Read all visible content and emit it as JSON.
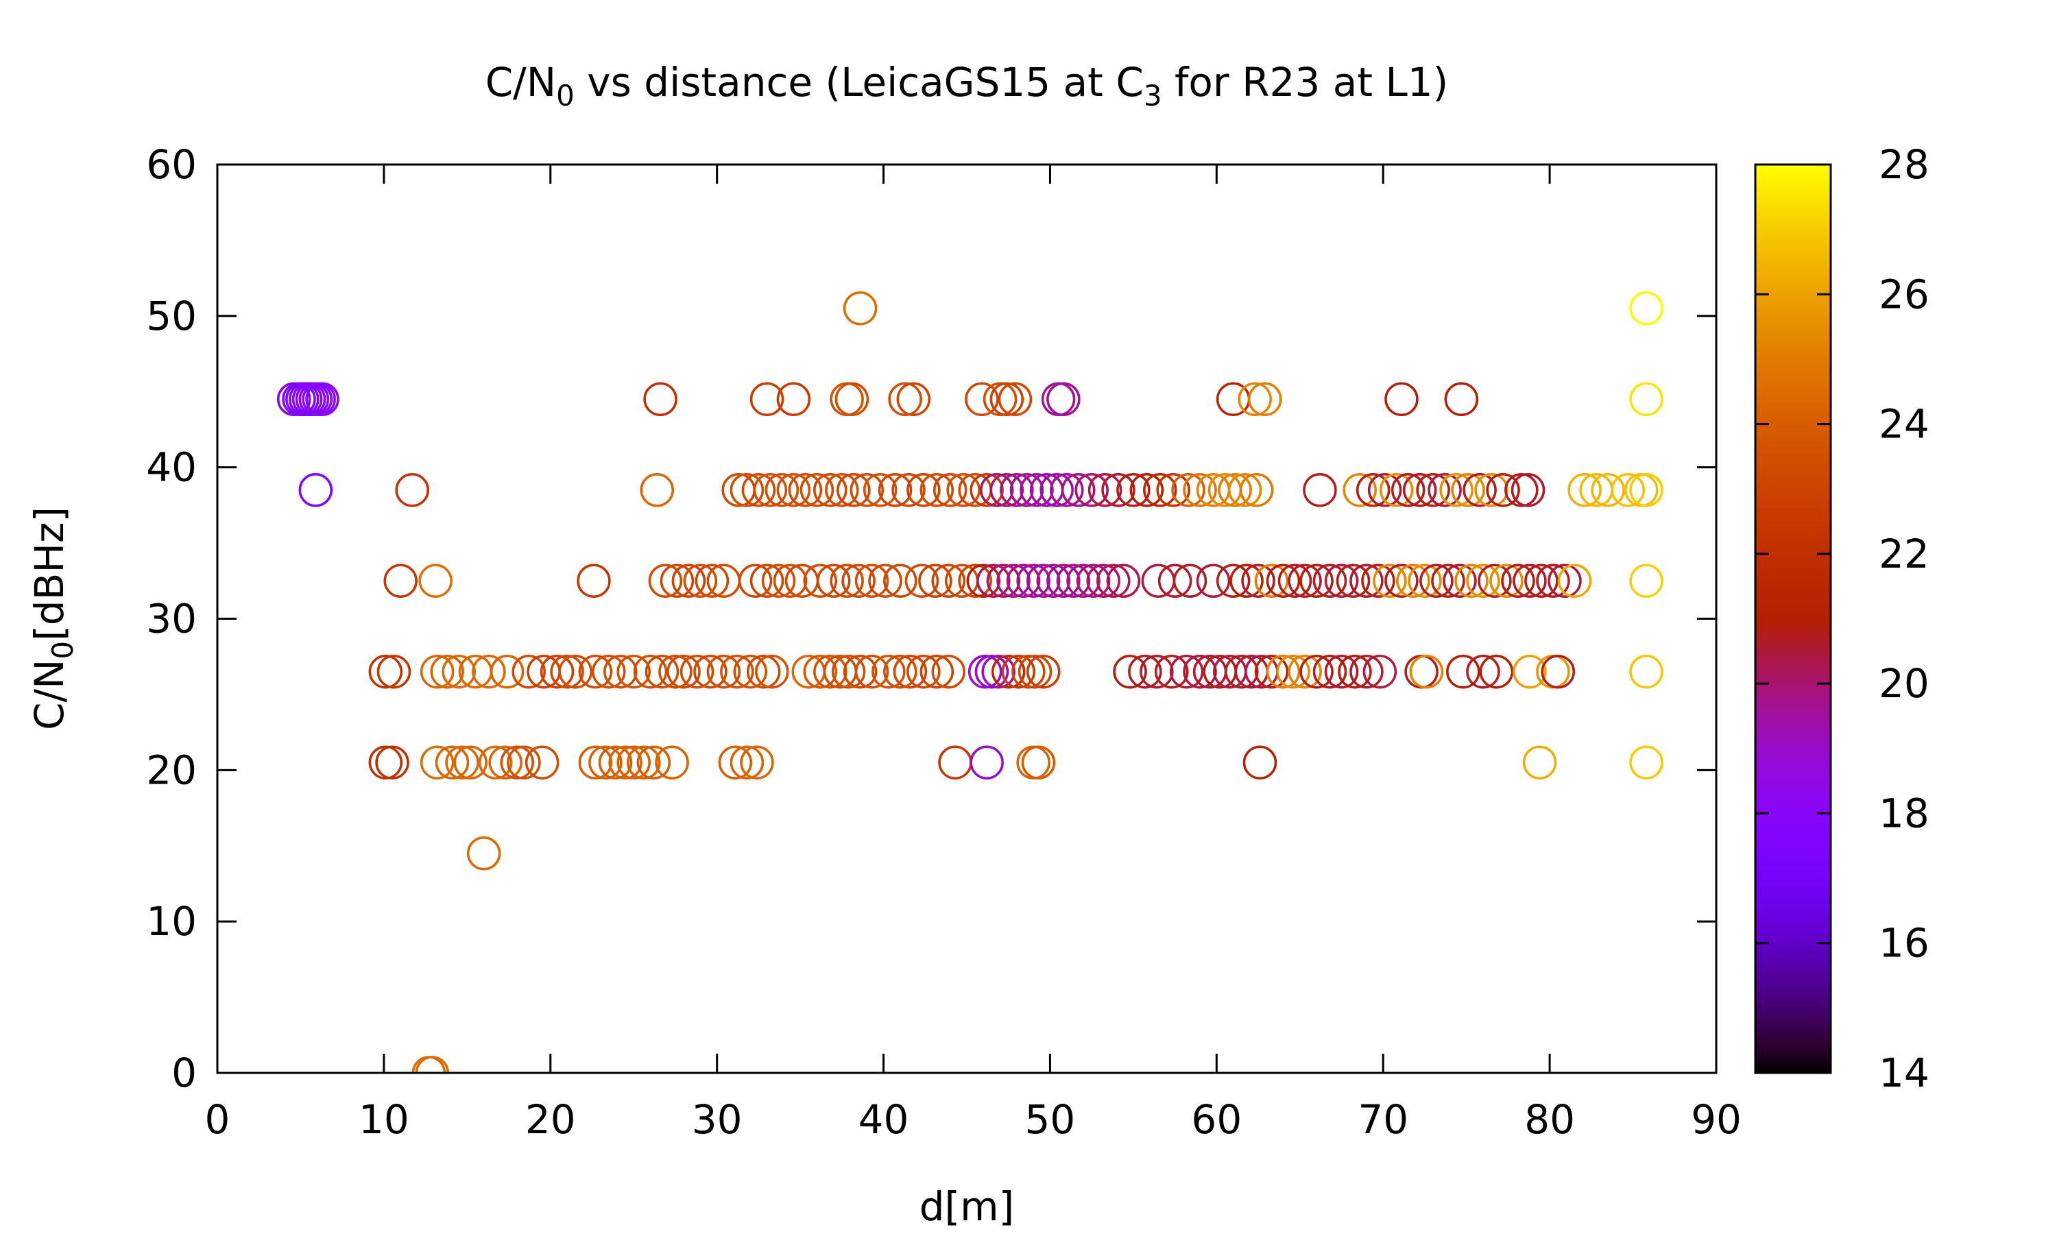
{
  "chart_data": {
    "type": "scatter",
    "title": {
      "base": "C/N",
      "sub": "0",
      "mid": " vs distance (LeicaGS15 at C",
      "sub2": "3",
      "tail": " for R23 at L1)"
    },
    "xlabel": "d[m]",
    "ylabel": {
      "base": "C/N",
      "sub": "0",
      "tail": "[dBHz]"
    },
    "xlim": [
      0,
      90
    ],
    "ylim": [
      0,
      60
    ],
    "xticks": [
      "0",
      "10",
      "20",
      "30",
      "40",
      "50",
      "60",
      "70",
      "80",
      "90"
    ],
    "yticks": [
      "0",
      "10",
      "20",
      "30",
      "40",
      "50",
      "60"
    ],
    "colorbar": {
      "range": [
        14,
        28
      ],
      "ticks": [
        "14",
        "16",
        "18",
        "20",
        "22",
        "24",
        "26",
        "28"
      ],
      "palette": "gnuplot-rgbformulae-7-5-15"
    },
    "grid": false,
    "marker": "open-circle",
    "points": [
      [
        4.6,
        44.5,
        17.5
      ],
      [
        4.9,
        44.5,
        17.5
      ],
      [
        5.1,
        44.5,
        17.6
      ],
      [
        5.3,
        44.5,
        17.7
      ],
      [
        5.5,
        44.5,
        17.7
      ],
      [
        5.7,
        44.5,
        17.8
      ],
      [
        5.9,
        44.5,
        17.8
      ],
      [
        6.1,
        44.5,
        17.9
      ],
      [
        6.3,
        44.5,
        17.9
      ],
      [
        5.9,
        38.5,
        17.6
      ],
      [
        10.1,
        20.5,
        22.0
      ],
      [
        10.5,
        20.5,
        22.0
      ],
      [
        10.1,
        26.5,
        22.2
      ],
      [
        10.6,
        26.5,
        22.4
      ],
      [
        11.0,
        32.5,
        22.3
      ],
      [
        11.7,
        38.5,
        22.2
      ],
      [
        13.1,
        32.5,
        24.6
      ],
      [
        12.7,
        0,
        24.5
      ],
      [
        12.9,
        0,
        24.5
      ],
      [
        13.2,
        26.5,
        24.3
      ],
      [
        13.8,
        26.5,
        24.2
      ],
      [
        14.5,
        26.5,
        24.4
      ],
      [
        15.5,
        26.5,
        24.3
      ],
      [
        16.3,
        26.5,
        24.4
      ],
      [
        17.4,
        26.5,
        24.2
      ],
      [
        18.7,
        26.5,
        23.3
      ],
      [
        19.6,
        26.5,
        22.8
      ],
      [
        20.4,
        26.5,
        22.8
      ],
      [
        21.0,
        26.5,
        23.2
      ],
      [
        21.5,
        26.5,
        23.5
      ],
      [
        22.7,
        26.5,
        23.3
      ],
      [
        23.5,
        26.5,
        23.4
      ],
      [
        24.2,
        26.5,
        23.4
      ],
      [
        25.0,
        26.5,
        23.6
      ],
      [
        26.0,
        26.5,
        23.4
      ],
      [
        26.7,
        26.5,
        23.3
      ],
      [
        27.5,
        26.5,
        23.4
      ],
      [
        28.0,
        26.5,
        23.3
      ],
      [
        28.8,
        26.5,
        23.4
      ],
      [
        29.6,
        26.5,
        23.1
      ],
      [
        30.4,
        26.5,
        23.4
      ],
      [
        31.2,
        26.5,
        23.6
      ],
      [
        32.0,
        26.5,
        23.5
      ],
      [
        32.8,
        26.5,
        23.3
      ],
      [
        33.3,
        26.5,
        23.5
      ],
      [
        13.2,
        20.5,
        24.5
      ],
      [
        14.1,
        20.5,
        24.2
      ],
      [
        14.7,
        20.5,
        24.4
      ],
      [
        15.2,
        20.5,
        24.2
      ],
      [
        16.7,
        20.5,
        24.4
      ],
      [
        17.3,
        20.5,
        24.3
      ],
      [
        18.0,
        20.5,
        23.6
      ],
      [
        18.4,
        20.5,
        23.6
      ],
      [
        19.5,
        20.5,
        23.3
      ],
      [
        22.7,
        20.5,
        24.0
      ],
      [
        23.3,
        20.5,
        24.1
      ],
      [
        23.9,
        20.5,
        24.0
      ],
      [
        24.5,
        20.5,
        24.2
      ],
      [
        25.0,
        20.5,
        24.1
      ],
      [
        25.6,
        20.5,
        24.2
      ],
      [
        26.2,
        20.5,
        24.0
      ],
      [
        27.3,
        20.5,
        24.2
      ],
      [
        31.1,
        20.5,
        24.0
      ],
      [
        31.8,
        20.5,
        24.2
      ],
      [
        32.4,
        20.5,
        24.3
      ],
      [
        16.0,
        14.5,
        24.4
      ],
      [
        22.6,
        32.5,
        22.3
      ],
      [
        26.6,
        44.5,
        22.0
      ],
      [
        26.4,
        38.5,
        24.3
      ],
      [
        26.9,
        32.5,
        23.3
      ],
      [
        27.6,
        32.5,
        23.1
      ],
      [
        28.3,
        32.5,
        23.0
      ],
      [
        29.0,
        32.5,
        23.4
      ],
      [
        29.7,
        32.5,
        23.2
      ],
      [
        30.4,
        32.5,
        23.3
      ],
      [
        32.3,
        32.5,
        23.1
      ],
      [
        33.0,
        32.5,
        23.0
      ],
      [
        33.7,
        32.5,
        23.4
      ],
      [
        34.4,
        32.5,
        23.3
      ],
      [
        35.1,
        32.5,
        23.1
      ],
      [
        36.2,
        32.5,
        23.4
      ],
      [
        37.0,
        32.5,
        23.0
      ],
      [
        37.8,
        32.5,
        23.2
      ],
      [
        38.5,
        32.5,
        23.1
      ],
      [
        39.3,
        32.5,
        23.4
      ],
      [
        40.1,
        32.5,
        23.2
      ],
      [
        41.0,
        32.5,
        23.1
      ],
      [
        42.3,
        32.5,
        23.3
      ],
      [
        43.1,
        32.5,
        22.9
      ],
      [
        43.9,
        32.5,
        23.0
      ],
      [
        44.7,
        32.5,
        23.2
      ],
      [
        45.5,
        32.5,
        23.1
      ],
      [
        31.3,
        38.5,
        23.2
      ],
      [
        31.8,
        38.5,
        23.4
      ],
      [
        32.5,
        38.5,
        23.3
      ],
      [
        33.2,
        38.5,
        23.5
      ],
      [
        33.9,
        38.5,
        23.4
      ],
      [
        34.6,
        38.5,
        23.5
      ],
      [
        35.3,
        38.5,
        23.3
      ],
      [
        36.0,
        38.5,
        23.4
      ],
      [
        36.8,
        38.5,
        23.2
      ],
      [
        37.5,
        38.5,
        23.4
      ],
      [
        38.2,
        38.5,
        23.1
      ],
      [
        39.0,
        38.5,
        23.3
      ],
      [
        39.8,
        38.5,
        23.5
      ],
      [
        40.7,
        38.5,
        23.0
      ],
      [
        41.5,
        38.5,
        23.2
      ],
      [
        42.4,
        38.5,
        23.0
      ],
      [
        43.2,
        38.5,
        23.3
      ],
      [
        44.0,
        38.5,
        23.1
      ],
      [
        44.8,
        38.5,
        23.4
      ],
      [
        45.5,
        38.5,
        23.2
      ],
      [
        46.2,
        38.5,
        22.6
      ],
      [
        33.0,
        44.5,
        22.7
      ],
      [
        34.6,
        44.5,
        22.5
      ],
      [
        37.8,
        44.5,
        23.6
      ],
      [
        38.1,
        44.5,
        23.4
      ],
      [
        41.3,
        44.5,
        23.4
      ],
      [
        41.8,
        44.5,
        23.1
      ],
      [
        45.9,
        44.5,
        23.2
      ],
      [
        47.0,
        44.5,
        23.4
      ],
      [
        47.4,
        44.5,
        22.9
      ],
      [
        47.9,
        44.5,
        23.1
      ],
      [
        50.5,
        44.5,
        19.7
      ],
      [
        50.8,
        44.5,
        19.5
      ],
      [
        61.0,
        44.5,
        21.2
      ],
      [
        62.3,
        44.5,
        25.3
      ],
      [
        62.9,
        44.5,
        25.1
      ],
      [
        71.1,
        44.5,
        20.9
      ],
      [
        74.7,
        44.5,
        20.9
      ],
      [
        38.6,
        50.5,
        24.5
      ],
      [
        85.8,
        50.5,
        27.9
      ],
      [
        35.5,
        26.5,
        24.3
      ],
      [
        36.2,
        26.5,
        23.9
      ],
      [
        36.8,
        26.5,
        23.6
      ],
      [
        37.4,
        26.5,
        23.4
      ],
      [
        37.9,
        26.5,
        23.5
      ],
      [
        38.6,
        26.5,
        23.2
      ],
      [
        39.3,
        26.5,
        23.4
      ],
      [
        40.3,
        26.5,
        23.6
      ],
      [
        41.0,
        26.5,
        23.4
      ],
      [
        41.6,
        26.5,
        23.1
      ],
      [
        42.4,
        26.5,
        23.2
      ],
      [
        43.2,
        26.5,
        23.0
      ],
      [
        43.9,
        26.5,
        23.3
      ],
      [
        46.1,
        26.5,
        18.8
      ],
      [
        46.5,
        26.5,
        18.9
      ],
      [
        46.9,
        26.5,
        19.2
      ],
      [
        47.5,
        26.5,
        21.6
      ],
      [
        48.1,
        26.5,
        22.6
      ],
      [
        48.7,
        26.5,
        23.1
      ],
      [
        49.1,
        26.5,
        23.2
      ],
      [
        49.6,
        26.5,
        22.8
      ],
      [
        44.3,
        20.5,
        22.4
      ],
      [
        46.2,
        20.5,
        18.8
      ],
      [
        49.0,
        20.5,
        24.2
      ],
      [
        49.3,
        20.5,
        23.9
      ],
      [
        62.6,
        20.5,
        21.2
      ],
      [
        79.4,
        20.5,
        26.3
      ],
      [
        85.8,
        20.5,
        27.0
      ],
      [
        46.0,
        32.5,
        21.0
      ],
      [
        46.6,
        32.5,
        20.3
      ],
      [
        47.2,
        32.5,
        20.1
      ],
      [
        47.8,
        32.5,
        19.7
      ],
      [
        48.4,
        32.5,
        19.8
      ],
      [
        49.0,
        32.5,
        19.6
      ],
      [
        49.6,
        32.5,
        19.5
      ],
      [
        50.2,
        32.5,
        19.7
      ],
      [
        50.8,
        32.5,
        19.6
      ],
      [
        51.4,
        32.5,
        19.8
      ],
      [
        52.0,
        32.5,
        19.7
      ],
      [
        52.6,
        32.5,
        19.9
      ],
      [
        53.2,
        32.5,
        20.0
      ],
      [
        53.8,
        32.5,
        20.2
      ],
      [
        54.4,
        32.5,
        20.3
      ],
      [
        56.5,
        32.5,
        20.5
      ],
      [
        57.5,
        32.5,
        20.6
      ],
      [
        58.4,
        32.5,
        20.7
      ],
      [
        59.8,
        32.5,
        20.5
      ],
      [
        61.0,
        32.5,
        20.8
      ],
      [
        46.8,
        38.5,
        20.2
      ],
      [
        47.4,
        38.5,
        20.0
      ],
      [
        48.0,
        38.5,
        19.8
      ],
      [
        48.6,
        38.5,
        19.6
      ],
      [
        49.2,
        38.5,
        19.4
      ],
      [
        49.8,
        38.5,
        19.5
      ],
      [
        50.4,
        38.5,
        19.3
      ],
      [
        51.0,
        38.5,
        19.6
      ],
      [
        51.7,
        38.5,
        19.8
      ],
      [
        52.5,
        38.5,
        20.1
      ],
      [
        53.3,
        38.5,
        20.4
      ],
      [
        54.1,
        38.5,
        20.6
      ],
      [
        55.0,
        38.5,
        20.8
      ],
      [
        55.8,
        38.5,
        21.0
      ],
      [
        56.6,
        38.5,
        21.5
      ],
      [
        57.4,
        38.5,
        22.2
      ],
      [
        58.3,
        38.5,
        24.0
      ],
      [
        59.0,
        38.5,
        24.8
      ],
      [
        59.8,
        38.5,
        25.2
      ],
      [
        60.5,
        38.5,
        25.4
      ],
      [
        61.1,
        38.5,
        25.1
      ],
      [
        61.7,
        38.5,
        25.3
      ],
      [
        62.4,
        38.5,
        24.9
      ],
      [
        54.8,
        26.5,
        20.8
      ],
      [
        55.7,
        26.5,
        20.7
      ],
      [
        56.4,
        26.5,
        20.6
      ],
      [
        57.3,
        26.5,
        20.8
      ],
      [
        58.2,
        26.5,
        20.5
      ],
      [
        59.0,
        26.5,
        20.4
      ],
      [
        59.6,
        26.5,
        20.6
      ],
      [
        60.2,
        26.5,
        20.8
      ],
      [
        60.8,
        26.5,
        20.5
      ],
      [
        61.5,
        26.5,
        20.7
      ],
      [
        62.1,
        26.5,
        20.6
      ],
      [
        62.7,
        26.5,
        20.4
      ],
      [
        63.3,
        26.5,
        20.9
      ],
      [
        64.0,
        26.5,
        25.1
      ],
      [
        64.6,
        26.5,
        25.4
      ],
      [
        65.3,
        26.5,
        25.2
      ],
      [
        66.0,
        26.5,
        20.9
      ],
      [
        66.8,
        26.5,
        20.8
      ],
      [
        67.5,
        26.5,
        20.6
      ],
      [
        68.3,
        26.5,
        20.9
      ],
      [
        69.0,
        26.5,
        20.7
      ],
      [
        69.8,
        26.5,
        20.5
      ],
      [
        72.3,
        26.5,
        20.8
      ],
      [
        72.6,
        26.5,
        25.2
      ],
      [
        74.8,
        26.5,
        20.9
      ],
      [
        76.0,
        26.5,
        20.7
      ],
      [
        76.8,
        26.5,
        20.9
      ],
      [
        78.8,
        26.5,
        26.0
      ],
      [
        80.2,
        26.5,
        25.7
      ],
      [
        80.5,
        26.5,
        20.8
      ],
      [
        85.8,
        26.5,
        26.9
      ],
      [
        61.8,
        32.5,
        21.0
      ],
      [
        62.5,
        32.5,
        20.7
      ],
      [
        63.3,
        32.5,
        25.0
      ],
      [
        64.0,
        32.5,
        21.0
      ],
      [
        64.7,
        32.5,
        20.8
      ],
      [
        65.3,
        32.5,
        20.6
      ],
      [
        66.0,
        32.5,
        20.9
      ],
      [
        66.8,
        32.5,
        20.7
      ],
      [
        67.5,
        32.5,
        20.5
      ],
      [
        68.2,
        32.5,
        20.8
      ],
      [
        69.0,
        32.5,
        20.6
      ],
      [
        69.7,
        32.5,
        20.9
      ],
      [
        70.4,
        32.5,
        25.4
      ],
      [
        71.1,
        32.5,
        20.8
      ],
      [
        71.8,
        32.5,
        25.2
      ],
      [
        72.5,
        32.5,
        25.5
      ],
      [
        73.2,
        32.5,
        20.7
      ],
      [
        73.9,
        32.5,
        20.9
      ],
      [
        74.6,
        32.5,
        20.6
      ],
      [
        75.3,
        32.5,
        25.3
      ],
      [
        76.0,
        32.5,
        25.6
      ],
      [
        76.7,
        32.5,
        20.8
      ],
      [
        77.4,
        32.5,
        25.4
      ],
      [
        78.1,
        32.5,
        20.9
      ],
      [
        78.8,
        32.5,
        20.6
      ],
      [
        79.5,
        32.5,
        20.8
      ],
      [
        80.2,
        32.5,
        20.7
      ],
      [
        80.9,
        32.5,
        20.5
      ],
      [
        81.5,
        32.5,
        26.2
      ],
      [
        85.8,
        32.5,
        27.1
      ],
      [
        66.2,
        38.5,
        20.8
      ],
      [
        68.6,
        38.5,
        25.3
      ],
      [
        69.4,
        38.5,
        20.9
      ],
      [
        70.1,
        38.5,
        20.6
      ],
      [
        70.8,
        38.5,
        25.5
      ],
      [
        71.5,
        38.5,
        20.8
      ],
      [
        72.2,
        38.5,
        20.7
      ],
      [
        73.0,
        38.5,
        20.9
      ],
      [
        73.7,
        38.5,
        20.5
      ],
      [
        74.4,
        38.5,
        25.6
      ],
      [
        75.1,
        38.5,
        25.3
      ],
      [
        75.8,
        38.5,
        20.8
      ],
      [
        76.5,
        38.5,
        25.5
      ],
      [
        77.2,
        38.5,
        20.9
      ],
      [
        78.3,
        38.5,
        20.7
      ],
      [
        78.7,
        38.5,
        20.6
      ],
      [
        82.1,
        38.5,
        26.4
      ],
      [
        82.8,
        38.5,
        26.6
      ],
      [
        83.5,
        38.5,
        26.5
      ],
      [
        84.7,
        38.5,
        26.8
      ],
      [
        85.5,
        38.5,
        26.7
      ],
      [
        85.8,
        38.5,
        27.0
      ],
      [
        85.8,
        44.5,
        27.5
      ]
    ]
  }
}
